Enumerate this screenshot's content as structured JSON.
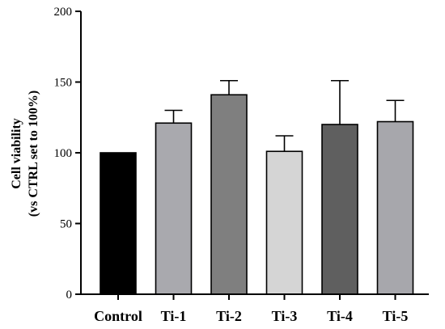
{
  "chart_data": {
    "type": "bar",
    "title": "",
    "ylabel_line1": "Cell viability",
    "ylabel_line2": "(vs CTRL set to 100%)",
    "xlabel": "",
    "categories": [
      "Control",
      "Ti-1",
      "Ti-2",
      "Ti-3",
      "Ti-4",
      "Ti-5"
    ],
    "values": [
      100,
      121,
      141,
      101,
      120,
      122
    ],
    "errors": [
      0,
      9,
      10,
      11,
      31,
      15
    ],
    "ylim": [
      0,
      200
    ],
    "yticks": [
      0,
      50,
      100,
      150,
      200
    ],
    "grid": false,
    "colors": [
      "#000000",
      "#a9a9ae",
      "#7f7f7f",
      "#d5d5d5",
      "#5f5f5f",
      "#a7a7ac"
    ]
  }
}
